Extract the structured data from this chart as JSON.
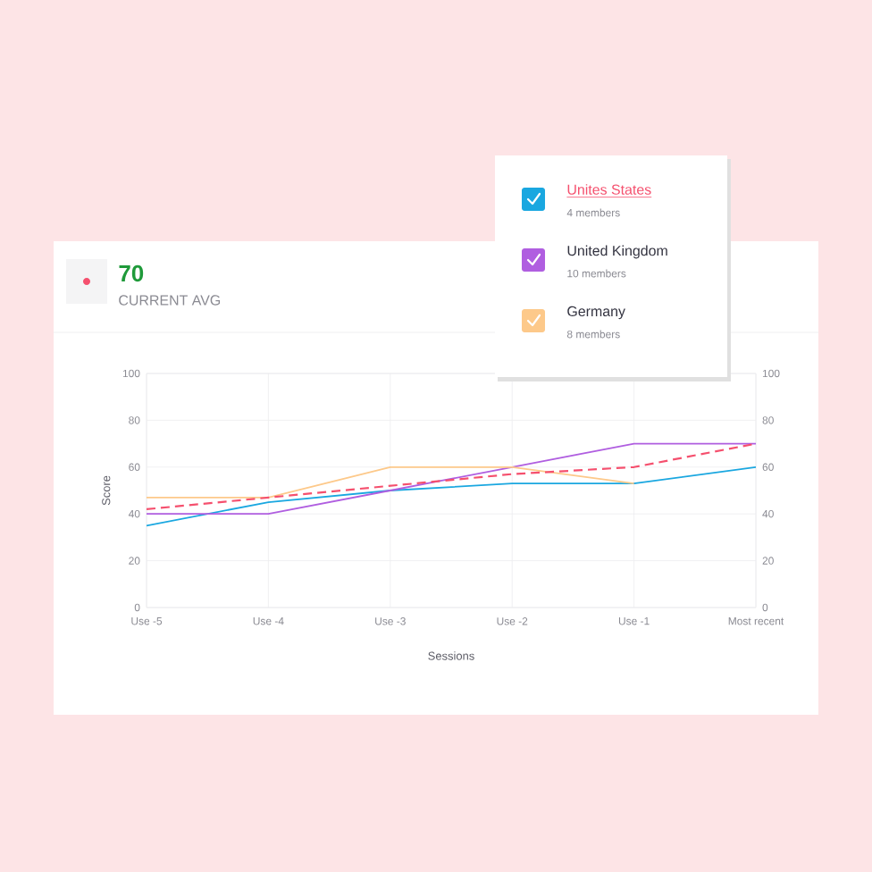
{
  "chart_data": {
    "type": "line",
    "xlabel": "Sessions",
    "ylabel": "Score",
    "categories": [
      "Use -5",
      "Use -4",
      "Use -3",
      "Use -2",
      "Use -1",
      "Most recent"
    ],
    "series": [
      {
        "name": "Unites States",
        "color": "#1aa7e0",
        "values": [
          35,
          45,
          50,
          53,
          53,
          60
        ]
      },
      {
        "name": "United Kingdom",
        "color": "#b05ee0",
        "values": [
          40,
          40,
          50,
          60,
          70,
          70
        ]
      },
      {
        "name": "Germany",
        "color": "#fdc98a",
        "values": [
          47,
          47,
          60,
          60,
          53,
          null
        ]
      },
      {
        "color": "#f5506e",
        "line_style": "dashed",
        "values": [
          42,
          47,
          52,
          57,
          60,
          70
        ]
      }
    ],
    "ylim": [
      0,
      100
    ],
    "yticks": [
      0,
      20,
      40,
      60,
      80,
      100
    ],
    "y2lim": [
      0,
      100
    ],
    "y2ticks": [
      0,
      20,
      40,
      60,
      80,
      100
    ],
    "grid": true,
    "legend": "top right",
    "marker": "none",
    "annotations": [
      "70",
      "CURRENT AVG",
      "4 members",
      "10 members",
      "8 members"
    ]
  }
}
